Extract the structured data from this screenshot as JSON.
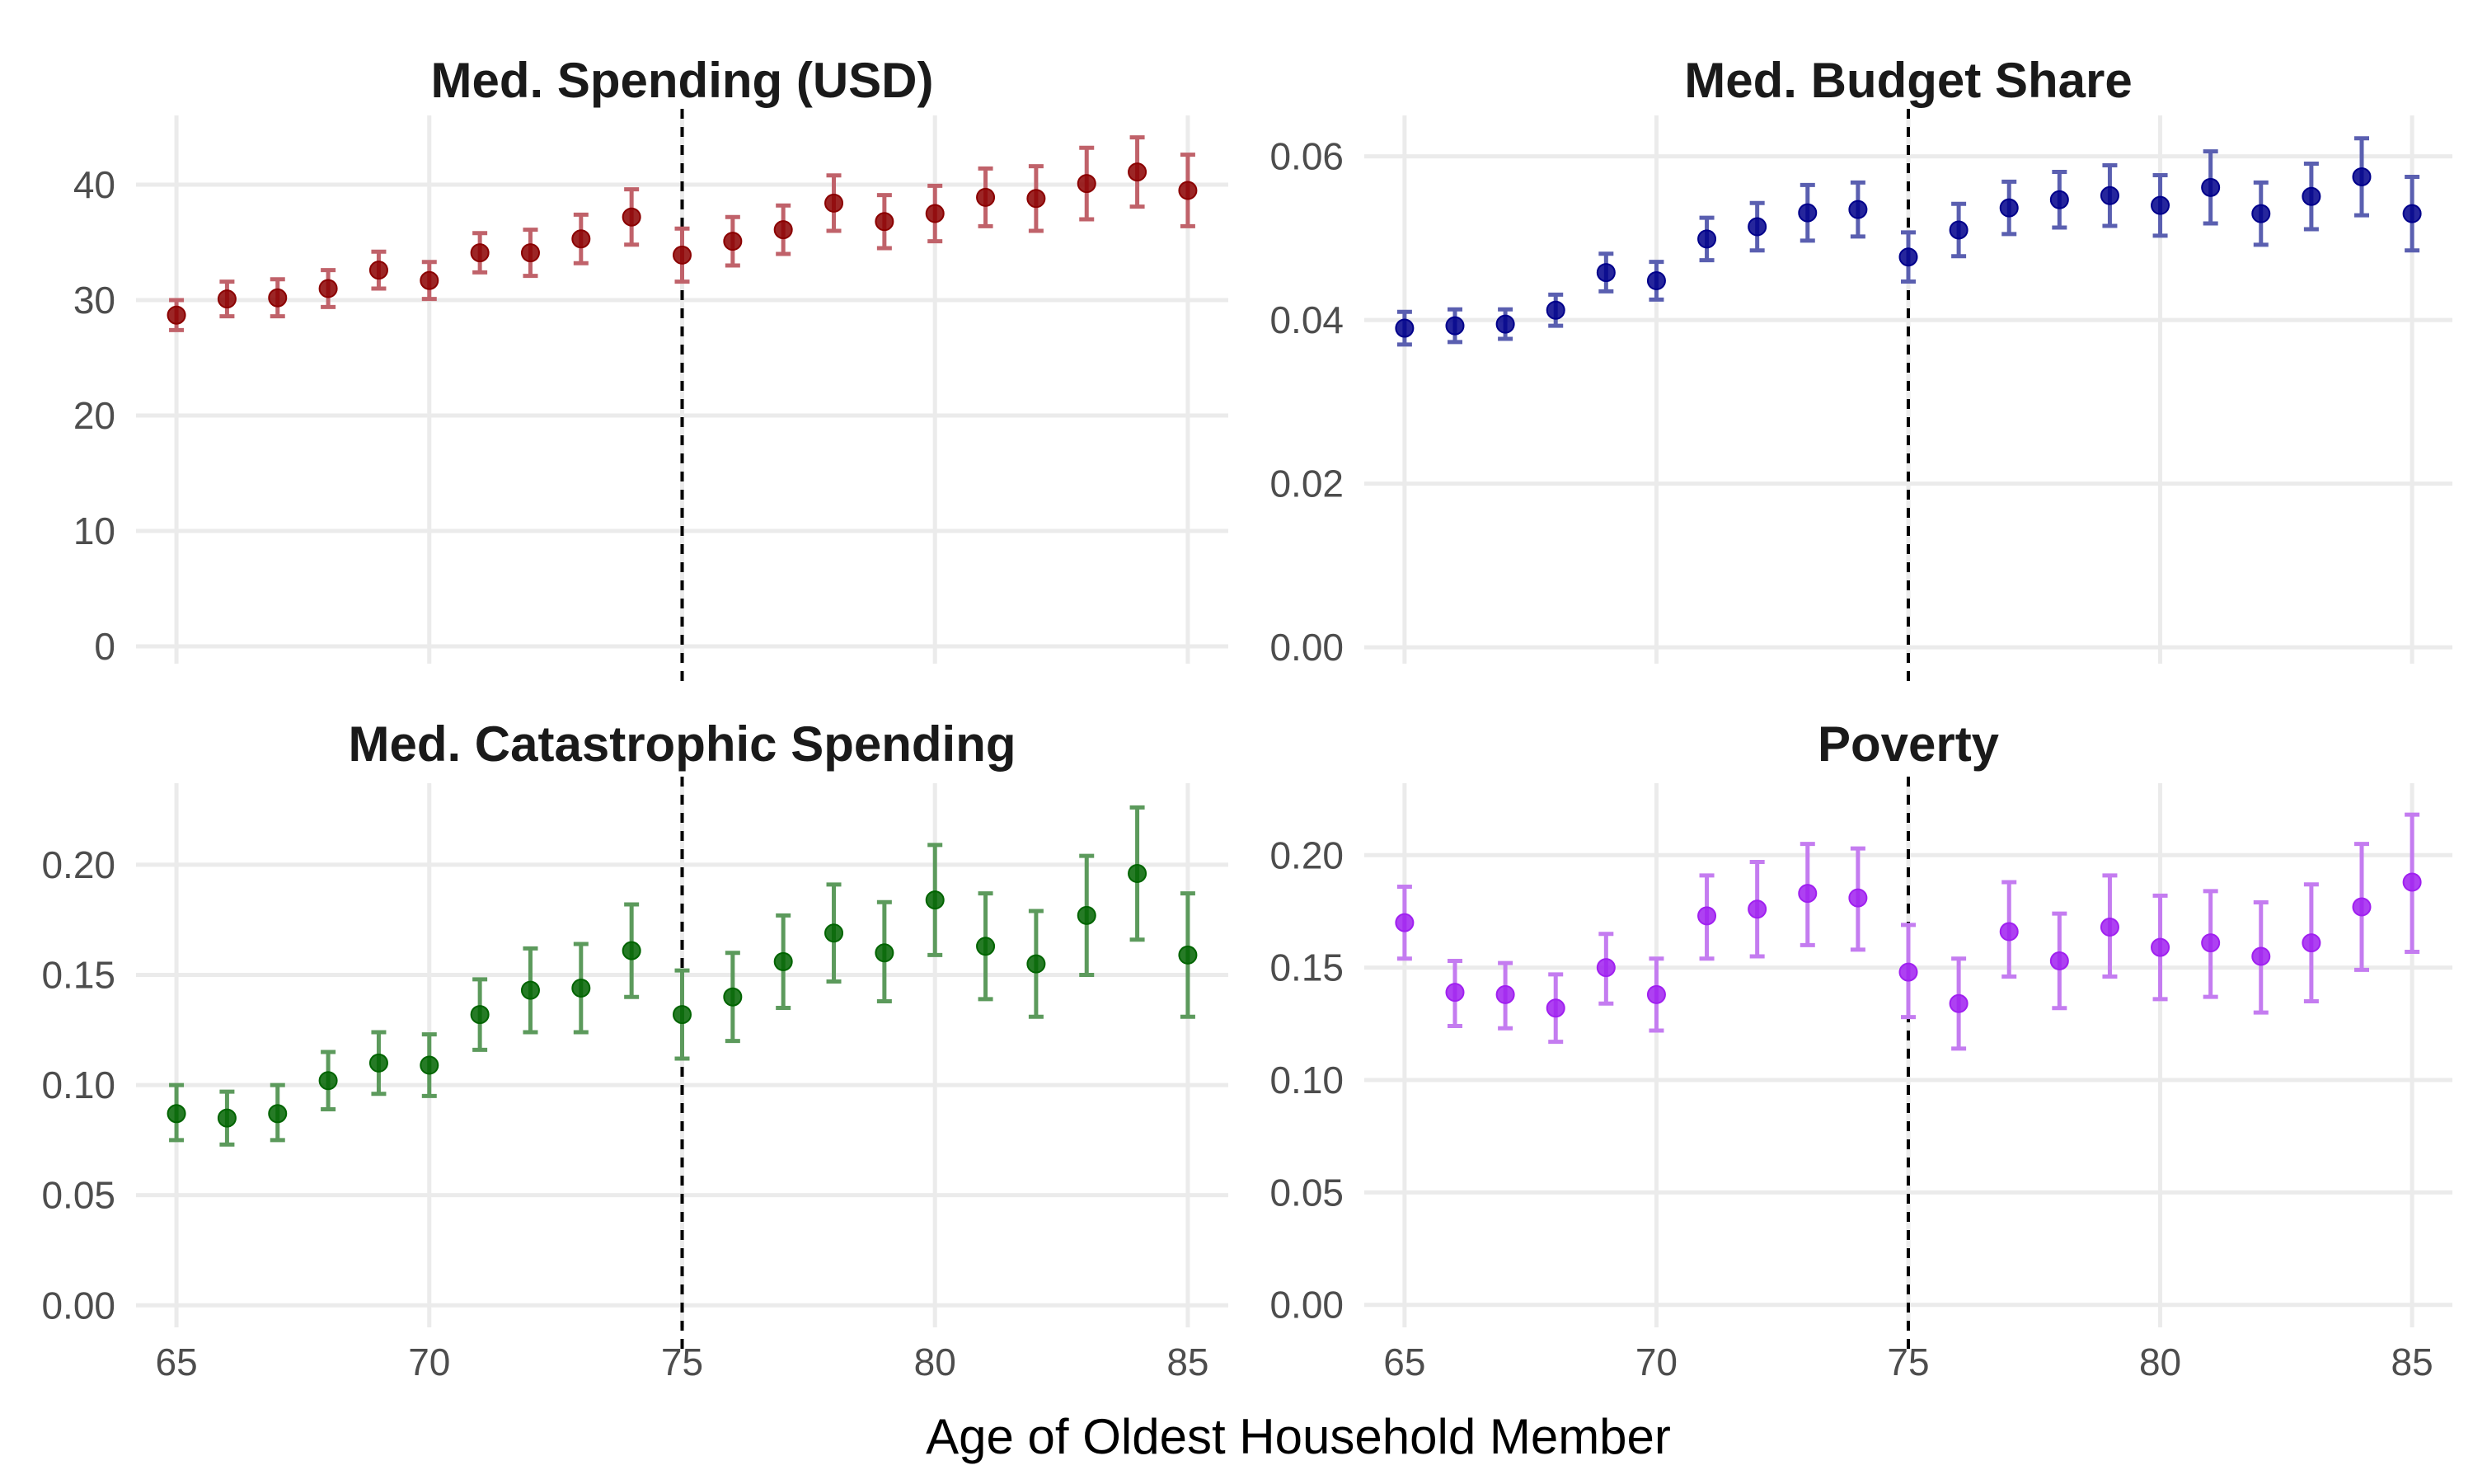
{
  "chart_data": [
    {
      "type": "scatter",
      "title": "Med. Spending (USD)",
      "xlabel": "Age of Oldest Household Member",
      "ylabel": "",
      "color": "#8b0000",
      "errorbar_color": "#c0626a",
      "xlim": [
        64.2,
        85.8
      ],
      "ylim": [
        -1.5,
        46
      ],
      "x_ticks": [
        65,
        70,
        75,
        80,
        85
      ],
      "y_ticks": [
        0,
        10,
        20,
        30,
        40
      ],
      "reference_line_x": 75,
      "grid": true,
      "x": [
        65,
        66,
        67,
        68,
        69,
        70,
        71,
        72,
        73,
        74,
        75,
        76,
        77,
        78,
        79,
        80,
        81,
        82,
        83,
        84,
        85
      ],
      "y": [
        28.7,
        30.1,
        30.2,
        31.0,
        32.6,
        31.7,
        34.1,
        34.1,
        35.3,
        37.2,
        33.9,
        35.1,
        36.1,
        38.4,
        36.8,
        37.5,
        38.9,
        38.8,
        40.1,
        41.1,
        39.5
      ],
      "lower": [
        27.4,
        28.6,
        28.6,
        29.4,
        31.0,
        30.1,
        32.4,
        32.1,
        33.2,
        34.8,
        31.6,
        33.0,
        34.0,
        36.0,
        34.5,
        35.1,
        36.4,
        36.0,
        37.0,
        38.1,
        36.4
      ],
      "upper": [
        30.0,
        31.6,
        31.8,
        32.6,
        34.2,
        33.3,
        35.8,
        36.1,
        37.4,
        39.6,
        36.2,
        37.2,
        38.2,
        40.8,
        39.1,
        39.9,
        41.4,
        41.6,
        43.2,
        44.1,
        42.6
      ]
    },
    {
      "type": "scatter",
      "title": "Med. Budget Share",
      "xlabel": "Age of Oldest Household Member",
      "ylabel": "",
      "color": "#00008b",
      "errorbar_color": "#5a5fb0",
      "xlim": [
        64.2,
        85.8
      ],
      "ylim": [
        -0.002,
        0.065
      ],
      "x_ticks": [
        65,
        70,
        75,
        80,
        85
      ],
      "y_ticks": [
        0.0,
        0.02,
        0.04,
        0.06
      ],
      "y_tick_labels": [
        "0.00",
        "0.02",
        "0.04",
        "0.06"
      ],
      "reference_line_x": 75,
      "grid": true,
      "x": [
        65,
        66,
        67,
        68,
        69,
        70,
        71,
        72,
        73,
        74,
        75,
        76,
        77,
        78,
        79,
        80,
        81,
        82,
        83,
        84,
        85
      ],
      "y": [
        0.039,
        0.0393,
        0.0395,
        0.0412,
        0.0458,
        0.0448,
        0.0499,
        0.0514,
        0.0531,
        0.0535,
        0.0477,
        0.051,
        0.0537,
        0.0547,
        0.0552,
        0.054,
        0.0562,
        0.053,
        0.0551,
        0.0575,
        0.053
      ],
      "lower": [
        0.037,
        0.0373,
        0.0377,
        0.0393,
        0.0435,
        0.0425,
        0.0473,
        0.0485,
        0.0497,
        0.0502,
        0.0447,
        0.0478,
        0.0505,
        0.0513,
        0.0515,
        0.0503,
        0.0518,
        0.0492,
        0.0511,
        0.0528,
        0.0485
      ],
      "upper": [
        0.041,
        0.0413,
        0.0413,
        0.0431,
        0.0481,
        0.0471,
        0.0525,
        0.0543,
        0.0565,
        0.0568,
        0.0507,
        0.0542,
        0.0569,
        0.0581,
        0.0589,
        0.0577,
        0.0606,
        0.0568,
        0.0591,
        0.0622,
        0.0575
      ]
    },
    {
      "type": "scatter",
      "title": "Med. Catastrophic Spending",
      "xlabel": "Age of Oldest Household Member",
      "ylabel": "",
      "color": "#006400",
      "errorbar_color": "#5c9a5c",
      "xlim": [
        64.2,
        85.8
      ],
      "ylim": [
        -0.01,
        0.237
      ],
      "x_ticks": [
        65,
        70,
        75,
        80,
        85
      ],
      "y_ticks": [
        0.0,
        0.05,
        0.1,
        0.15,
        0.2
      ],
      "y_tick_labels": [
        "0.00",
        "0.05",
        "0.10",
        "0.15",
        "0.20"
      ],
      "reference_line_x": 75,
      "grid": true,
      "x": [
        65,
        66,
        67,
        68,
        69,
        70,
        71,
        72,
        73,
        74,
        75,
        76,
        77,
        78,
        79,
        80,
        81,
        82,
        83,
        84,
        85
      ],
      "y": [
        0.087,
        0.085,
        0.087,
        0.102,
        0.11,
        0.109,
        0.132,
        0.143,
        0.144,
        0.161,
        0.132,
        0.14,
        0.156,
        0.169,
        0.16,
        0.184,
        0.163,
        0.155,
        0.177,
        0.196,
        0.159
      ],
      "lower": [
        0.075,
        0.073,
        0.075,
        0.089,
        0.096,
        0.095,
        0.116,
        0.124,
        0.124,
        0.14,
        0.112,
        0.12,
        0.135,
        0.147,
        0.138,
        0.159,
        0.139,
        0.131,
        0.15,
        0.166,
        0.131
      ],
      "upper": [
        0.1,
        0.097,
        0.1,
        0.115,
        0.124,
        0.123,
        0.148,
        0.162,
        0.164,
        0.182,
        0.152,
        0.16,
        0.177,
        0.191,
        0.183,
        0.209,
        0.187,
        0.179,
        0.204,
        0.226,
        0.187
      ]
    },
    {
      "type": "scatter",
      "title": "Poverty",
      "xlabel": "Age of Oldest Household Member",
      "ylabel": "",
      "color": "#a020f0",
      "errorbar_color": "#c47cf0",
      "xlim": [
        64.2,
        85.8
      ],
      "ylim": [
        -0.01,
        0.232
      ],
      "x_ticks": [
        65,
        70,
        75,
        80,
        85
      ],
      "y_ticks": [
        0.0,
        0.05,
        0.1,
        0.15,
        0.2
      ],
      "y_tick_labels": [
        "0.00",
        "0.05",
        "0.10",
        "0.15",
        "0.20"
      ],
      "reference_line_x": 75,
      "grid": true,
      "x": [
        65,
        66,
        67,
        68,
        69,
        70,
        71,
        72,
        73,
        74,
        75,
        76,
        77,
        78,
        79,
        80,
        81,
        82,
        83,
        84,
        85
      ],
      "y": [
        0.17,
        0.139,
        0.138,
        0.132,
        0.15,
        0.138,
        0.173,
        0.176,
        0.183,
        0.181,
        0.148,
        0.134,
        0.166,
        0.153,
        0.168,
        0.159,
        0.161,
        0.155,
        0.161,
        0.177,
        0.188
      ],
      "lower": [
        0.154,
        0.124,
        0.123,
        0.117,
        0.134,
        0.122,
        0.154,
        0.155,
        0.16,
        0.158,
        0.128,
        0.114,
        0.146,
        0.132,
        0.146,
        0.136,
        0.137,
        0.13,
        0.135,
        0.149,
        0.157
      ],
      "upper": [
        0.186,
        0.153,
        0.152,
        0.147,
        0.165,
        0.154,
        0.191,
        0.197,
        0.205,
        0.203,
        0.169,
        0.154,
        0.188,
        0.174,
        0.191,
        0.182,
        0.184,
        0.179,
        0.187,
        0.205,
        0.218
      ]
    }
  ],
  "figure": {
    "x_axis_title": "Age of Oldest Household Member"
  }
}
